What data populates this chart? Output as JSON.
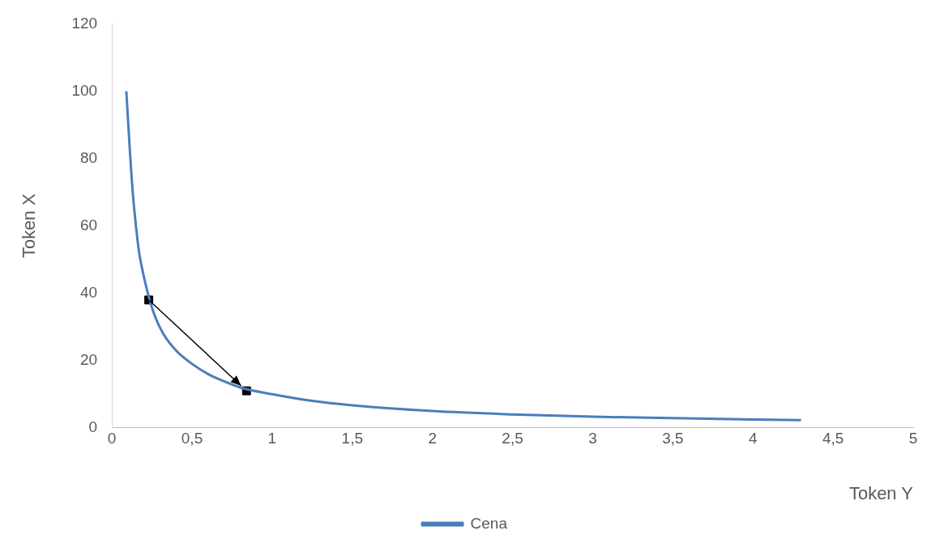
{
  "chart_data": {
    "type": "line",
    "xlabel": "Token Y",
    "ylabel": "Token X",
    "xlim": [
      0,
      5
    ],
    "xticks": [
      0,
      {
        "value": 0.5,
        "label": "0,5"
      },
      1,
      {
        "value": 1.5,
        "label": "1,5"
      },
      2,
      {
        "value": 2.5,
        "label": "2,5"
      },
      3,
      {
        "value": 3.5,
        "label": "3,5"
      },
      4,
      {
        "value": 4.5,
        "label": "4,5"
      },
      5
    ],
    "ylim": [
      0,
      120
    ],
    "yticks": [
      0,
      20,
      40,
      60,
      80,
      100,
      120
    ],
    "grid": false,
    "legend": "bottom",
    "series": [
      {
        "name": "Cena",
        "type": "line",
        "color": "#4a7ebb",
        "marker": "none",
        "x": [
          0.09,
          0.11,
          0.13,
          0.15,
          0.17,
          0.19,
          0.23,
          0.27,
          0.32,
          0.4,
          0.5,
          0.6,
          0.7,
          0.8,
          1,
          1.25,
          1.5,
          2,
          2.5,
          3,
          3.5,
          4,
          4.3
        ],
        "values": [
          100,
          84,
          70,
          60,
          52,
          47,
          39,
          33,
          28,
          23,
          19,
          16,
          13.8,
          12,
          10,
          8,
          6.7,
          5,
          4,
          3.3,
          2.9,
          2.5,
          2.3
        ]
      },
      {
        "type": "scatter",
        "color": "#000000",
        "marker": "square",
        "x": [
          0.23,
          0.84
        ],
        "values": [
          38,
          11
        ]
      }
    ]
  }
}
